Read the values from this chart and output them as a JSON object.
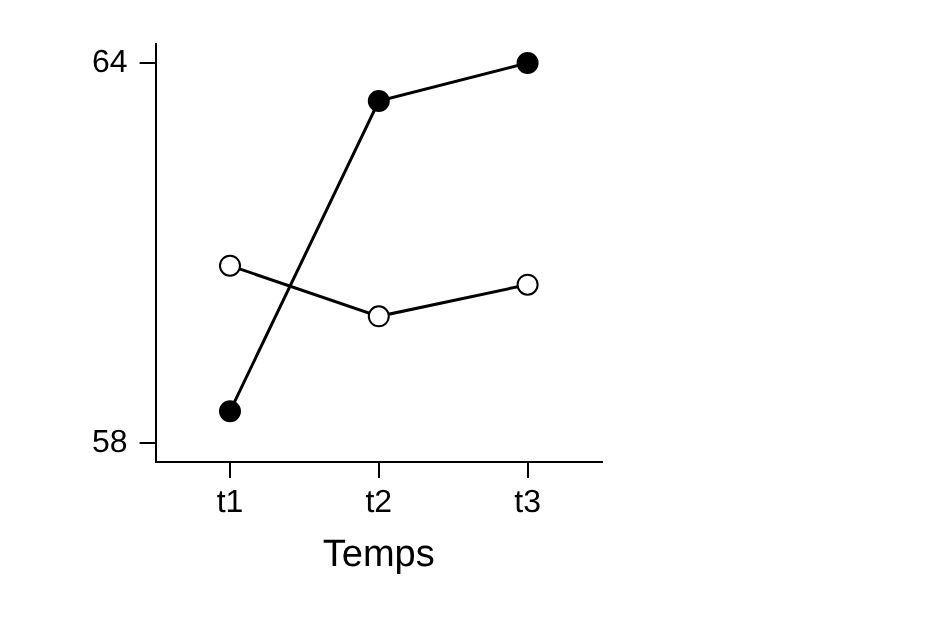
{
  "chart_data": {
    "type": "line",
    "xlabel": "Temps",
    "categories": [
      "t1",
      "t2",
      "t3"
    ],
    "series": [
      {
        "color": "#000000",
        "values": [
          58.5,
          63.4,
          64.0
        ]
      },
      {
        "color": "#000000",
        "values": [
          60.8,
          60.0,
          60.5
        ]
      }
    ],
    "ylim": [
      57.7,
      64.3
    ],
    "yticks": [
      58,
      64
    ],
    "grid": false,
    "legend": false,
    "marker": "circle",
    "line_style": "solid"
  }
}
